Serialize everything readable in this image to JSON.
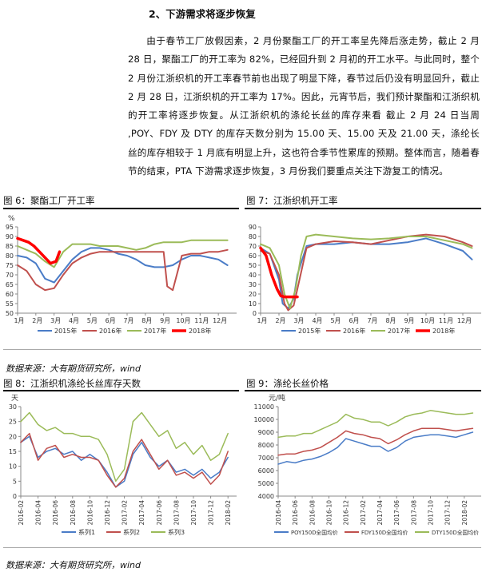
{
  "heading": "2、下游需求将逐步恢复",
  "paragraph": "由于春节工厂放假因素，2 月份聚酯工厂的开工率呈先降后涨走势，截止 2 月 28 日，聚酯工厂的开工率为 82%，已经回升到 2 月初的开工水平。与此同时，整个 2 月份江浙织机的开工率春节前也出现了明显下降，春节过后仍没有明显回升，截止 2 月 28 日，江浙织机的开工率为 17%。因此，元宵节后，我们预计聚酯和江浙织机的开工率将逐步恢复。从江浙织机的涤纶长丝的库存来看 截止 2 月 24 日当周 ,POY、FDY 及 DTY 的库存天数分别为 15.00 天、15.00 天及 21.00 天，涤纶长丝的库存相较于 1 月底有明显上升，这也符合季节性累库的预期。整体而言，随着春节的结束，PTA 下游需求逐步恢复，3 月份我们要重点关注下游复工的情况。",
  "fig6_caption": "图 6：聚酯工厂开工率",
  "fig7_caption": "图 7：江浙织机开工率",
  "fig8_caption": "图 8：江浙织机涤纶长丝库存天数",
  "fig9_caption": "图 9：涤纶长丝价格",
  "source_note_1": "数据来源：大有期货研究所，wind",
  "source_note_2": "数据来源：大有期货研究所，wind",
  "colors": {
    "blue": "#4a7cc7",
    "red": "#c0504d",
    "green": "#9bbb59",
    "bright_red": "#ff0000",
    "purple": "#7f6aa8",
    "axis": "#888888"
  },
  "chart_data": [
    {
      "id": "fig6",
      "type": "line",
      "ylabel": "%",
      "ylim": [
        50,
        95
      ],
      "yticks": [
        50,
        55,
        60,
        65,
        70,
        75,
        80,
        85,
        90,
        95
      ],
      "categories": [
        "1月",
        "2月",
        "3月",
        "4月",
        "5月",
        "6月",
        "7月",
        "8月",
        "9月",
        "10月",
        "11月",
        "12月"
      ],
      "legend_position": "bottom",
      "series": [
        {
          "name": "2015年",
          "color": "#4a7cc7",
          "width": 2,
          "x": [
            0,
            0.5,
            1,
            1.5,
            2,
            2.5,
            3,
            3.5,
            4,
            4.5,
            5,
            5.5,
            6,
            6.5,
            7,
            7.5,
            8,
            8.5,
            9,
            9.5,
            10,
            10.5,
            11,
            11.5
          ],
          "y": [
            80,
            79,
            76,
            68,
            66,
            72,
            78,
            82,
            84,
            84,
            83,
            81,
            80,
            78,
            75,
            74,
            74,
            75,
            78,
            80,
            80,
            79,
            78,
            75
          ]
        },
        {
          "name": "2016年",
          "color": "#c0504d",
          "width": 2,
          "x": [
            0,
            0.5,
            1,
            1.5,
            2,
            2.5,
            3,
            3.5,
            4,
            4.5,
            5,
            5.5,
            6,
            6.5,
            7,
            7.5,
            8,
            8.2,
            8.5,
            9,
            9.5,
            10,
            10.5,
            11,
            11.5
          ],
          "y": [
            75,
            72,
            65,
            62,
            63,
            70,
            76,
            79,
            81,
            82,
            82,
            82,
            82,
            82,
            82,
            82,
            82,
            64,
            62,
            80,
            81,
            81,
            82,
            82,
            83
          ]
        },
        {
          "name": "2017年",
          "color": "#9bbb59",
          "width": 2,
          "x": [
            0,
            0.5,
            1,
            1.5,
            2,
            2.5,
            3,
            3.5,
            4,
            4.5,
            5,
            5.5,
            6,
            6.5,
            7,
            7.5,
            8,
            8.5,
            9,
            9.5,
            10,
            10.5,
            11,
            11.5
          ],
          "y": [
            85,
            83,
            81,
            77,
            74,
            82,
            86,
            86,
            86,
            85,
            85,
            85,
            84,
            83,
            84,
            86,
            87,
            87,
            87,
            88,
            88,
            88,
            88,
            88
          ]
        },
        {
          "name": "2018年",
          "color": "#ff0000",
          "width": 3.5,
          "x": [
            0,
            0.3,
            0.6,
            0.9,
            1.2,
            1.5,
            1.8,
            2.1,
            2.3
          ],
          "y": [
            89,
            88,
            87,
            85,
            82,
            79,
            76,
            77,
            82
          ]
        }
      ]
    },
    {
      "id": "fig7",
      "type": "line",
      "ylim": [
        0,
        90
      ],
      "yticks": [
        0,
        10,
        20,
        30,
        40,
        50,
        60,
        70,
        80,
        90
      ],
      "categories": [
        "1月",
        "2月",
        "3月",
        "4月",
        "5月",
        "6月",
        "7月",
        "8月",
        "9月",
        "10月",
        "11月",
        "12月"
      ],
      "legend_position": "bottom",
      "series": [
        {
          "name": "2015年",
          "color": "#4a7cc7",
          "width": 2,
          "x": [
            0,
            0.5,
            1,
            1.2,
            1.5,
            1.8,
            2,
            2.5,
            3,
            4,
            5,
            6,
            7,
            8,
            9,
            10,
            11,
            11.5
          ],
          "y": [
            68,
            62,
            35,
            10,
            5,
            15,
            40,
            70,
            72,
            72,
            74,
            72,
            72,
            74,
            78,
            72,
            65,
            56
          ]
        },
        {
          "name": "2016年",
          "color": "#c0504d",
          "width": 2,
          "x": [
            0,
            0.5,
            1,
            1.3,
            1.5,
            1.8,
            2,
            2.5,
            3,
            4,
            5,
            6,
            7,
            8,
            9,
            10,
            11,
            11.5
          ],
          "y": [
            65,
            62,
            40,
            10,
            3,
            8,
            25,
            68,
            72,
            75,
            74,
            72,
            76,
            80,
            82,
            80,
            74,
            70
          ]
        },
        {
          "name": "2017年",
          "color": "#9bbb59",
          "width": 2,
          "x": [
            0,
            0.5,
            1,
            1.3,
            1.6,
            1.9,
            2.2,
            2.5,
            3,
            4,
            5,
            6,
            7,
            8,
            9,
            10,
            11,
            11.5
          ],
          "y": [
            72,
            68,
            50,
            20,
            5,
            25,
            60,
            80,
            82,
            80,
            78,
            77,
            78,
            80,
            80,
            76,
            72,
            68
          ]
        },
        {
          "name": "2018年",
          "color": "#ff0000",
          "width": 3.5,
          "x": [
            0,
            0.3,
            0.6,
            0.9,
            1.1,
            1.3,
            1.5,
            1.7,
            2.0
          ],
          "y": [
            68,
            60,
            40,
            25,
            18,
            17,
            17,
            17,
            17
          ]
        }
      ]
    },
    {
      "id": "fig8",
      "type": "line",
      "ylabel": "天",
      "ylim": [
        0,
        30
      ],
      "yticks": [
        0,
        5,
        10,
        15,
        20,
        25,
        30
      ],
      "categories": [
        "2016-02",
        "2016-04",
        "2016-06",
        "2016-08",
        "2016-10",
        "2016-12",
        "2017-02",
        "2017-04",
        "2017-06",
        "2017-08",
        "2017-10",
        "2017-12",
        "2018-02"
      ],
      "legend_position": "bottom",
      "series": [
        {
          "name": "系列1",
          "color": "#4a7cc7",
          "width": 1.5,
          "x": [
            0,
            0.5,
            1,
            1.5,
            2,
            2.5,
            3,
            3.5,
            4,
            4.5,
            5,
            5.5,
            6,
            6.5,
            7,
            7.5,
            8,
            8.5,
            9,
            9.5,
            10,
            10.5,
            11,
            11.5,
            12
          ],
          "y": [
            18,
            20,
            13,
            15,
            16,
            14,
            15,
            12,
            14,
            12,
            8,
            3,
            5,
            14,
            18,
            13,
            10,
            12,
            8,
            9,
            7,
            9,
            6,
            8,
            13
          ]
        },
        {
          "name": "系列2",
          "color": "#c0504d",
          "width": 1.5,
          "x": [
            0,
            0.5,
            1,
            1.5,
            2,
            2.5,
            3,
            3.5,
            4,
            4.5,
            5,
            5.5,
            6,
            6.5,
            7,
            7.5,
            8,
            8.5,
            9,
            9.5,
            10,
            10.5,
            11,
            11.5,
            12
          ],
          "y": [
            18,
            21,
            12,
            16,
            17,
            13,
            14,
            13,
            13,
            12,
            7,
            3,
            6,
            15,
            19,
            14,
            9,
            12,
            7,
            8,
            6,
            8,
            4,
            7,
            15
          ]
        },
        {
          "name": "系列3",
          "color": "#9bbb59",
          "width": 1.5,
          "x": [
            0,
            0.5,
            1,
            1.5,
            2,
            2.5,
            3,
            3.5,
            4,
            4.5,
            5,
            5.5,
            6,
            6.5,
            7,
            7.5,
            8,
            8.5,
            9,
            9.5,
            10,
            10.5,
            11,
            11.5,
            12
          ],
          "y": [
            25,
            28,
            24,
            22,
            23,
            21,
            21,
            20,
            20,
            19,
            14,
            5,
            9,
            25,
            28,
            24,
            20,
            22,
            16,
            18,
            14,
            17,
            12,
            14,
            21
          ]
        }
      ]
    },
    {
      "id": "fig9",
      "type": "line",
      "ylabel": "元/吨",
      "ylim": [
        4000,
        11000
      ],
      "yticks": [
        4000,
        5000,
        6000,
        7000,
        8000,
        9000,
        10000,
        11000
      ],
      "categories": [
        "2016-04",
        "2016-06",
        "2016-08",
        "2016-10",
        "2016-12",
        "2017-02",
        "2017-04",
        "2017-06",
        "2017-08",
        "2017-10",
        "2017-12",
        "2018-02"
      ],
      "legend_position": "bottom",
      "series": [
        {
          "name": "POY150D全国均价",
          "color": "#4a7cc7",
          "width": 1.5,
          "x": [
            0,
            0.5,
            1,
            1.5,
            2,
            2.5,
            3,
            3.5,
            4,
            4.5,
            5,
            5.5,
            6,
            6.5,
            7,
            7.5,
            8,
            8.5,
            9,
            9.5,
            10,
            10.5,
            11,
            11.5
          ],
          "y": [
            6500,
            6700,
            6600,
            6800,
            6900,
            7100,
            7400,
            7800,
            8500,
            8300,
            8100,
            7900,
            7900,
            7500,
            7800,
            8300,
            8600,
            8700,
            8800,
            8800,
            8700,
            8600,
            8800,
            9000
          ]
        },
        {
          "name": "FDY150D全国均价",
          "color": "#c0504d",
          "width": 1.5,
          "x": [
            0,
            0.5,
            1,
            1.5,
            2,
            2.5,
            3,
            3.5,
            4,
            4.5,
            5,
            5.5,
            6,
            6.5,
            7,
            7.5,
            8,
            8.5,
            9,
            9.5,
            10,
            10.5,
            11,
            11.5
          ],
          "y": [
            7200,
            7300,
            7300,
            7500,
            7600,
            7800,
            8200,
            8600,
            9100,
            8900,
            8800,
            8600,
            8500,
            8100,
            8400,
            8800,
            9100,
            9300,
            9300,
            9300,
            9200,
            9100,
            9200,
            9300
          ]
        },
        {
          "name": "DTY150D全国均价",
          "color": "#9bbb59",
          "width": 1.5,
          "x": [
            0,
            0.5,
            1,
            1.5,
            2,
            2.5,
            3,
            3.5,
            4,
            4.5,
            5,
            5.5,
            6,
            6.5,
            7,
            7.5,
            8,
            8.5,
            9,
            9.5,
            10,
            10.5,
            11,
            11.5
          ],
          "y": [
            8600,
            8700,
            8700,
            8900,
            8900,
            9200,
            9500,
            9800,
            10400,
            10100,
            10000,
            9800,
            9800,
            9500,
            9800,
            10200,
            10400,
            10500,
            10700,
            10600,
            10500,
            10400,
            10400,
            10500
          ]
        }
      ]
    }
  ]
}
